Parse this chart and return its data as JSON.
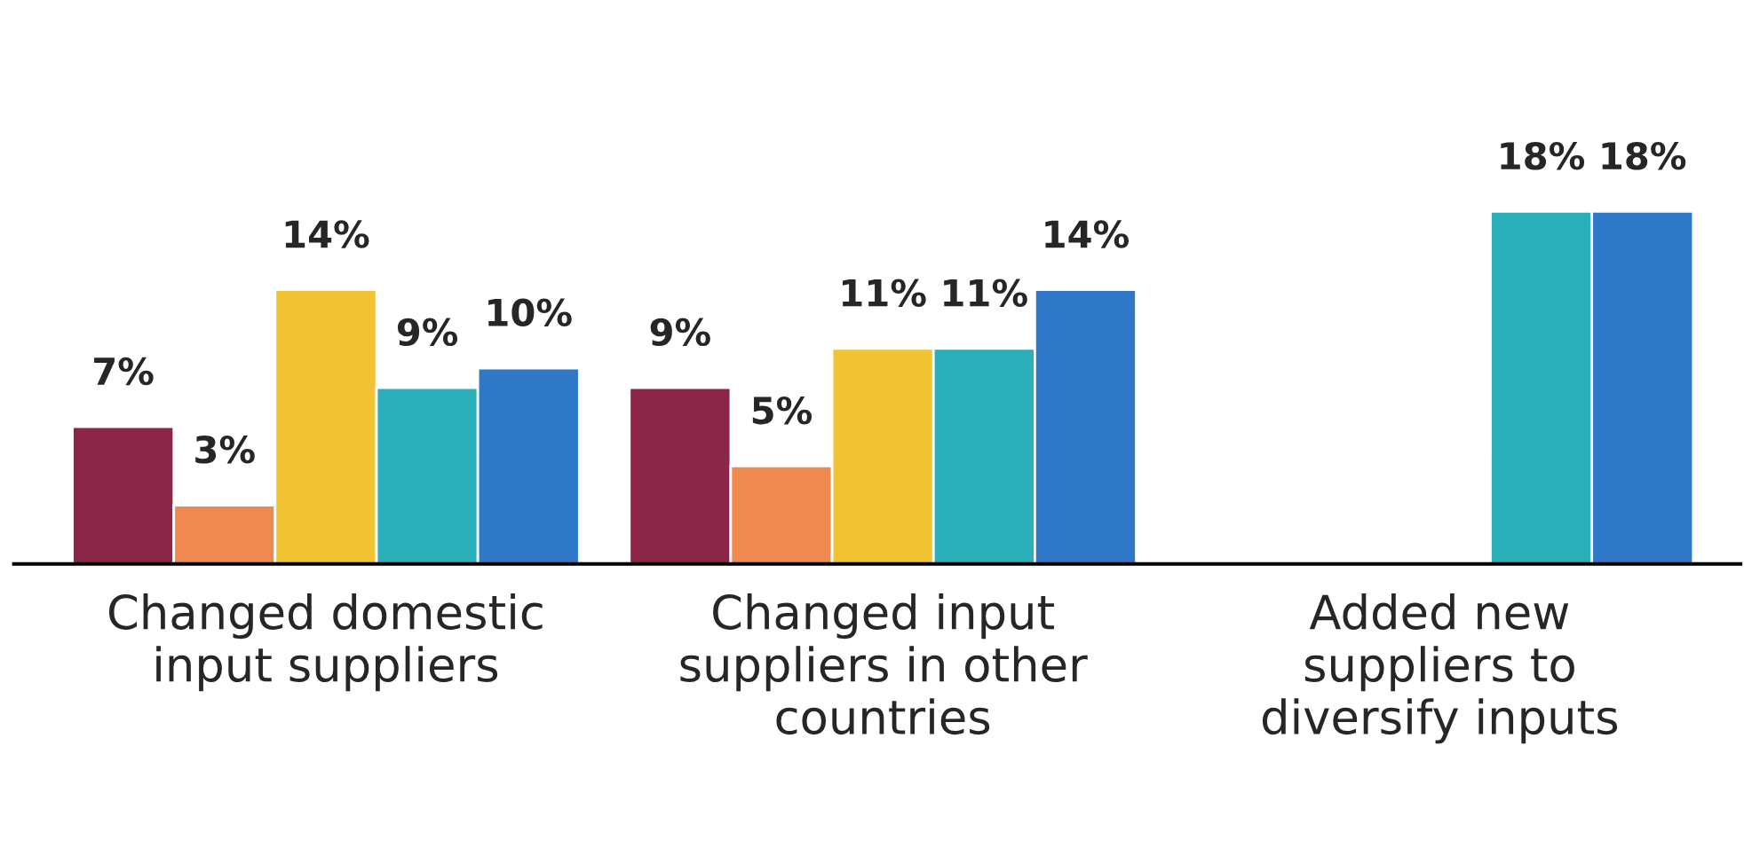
{
  "chart_data": {
    "type": "bar",
    "categories": [
      "Changed domestic\ninput suppliers",
      "Changed input\nsuppliers in other\ncountries",
      "Added new\nsuppliers to\ndiversify inputs"
    ],
    "series": [
      {
        "color": "#8b2649",
        "values": [
          7,
          9,
          null
        ],
        "value_labels": [
          "7%",
          "9%",
          null
        ]
      },
      {
        "color": "#ee8a4f",
        "values": [
          3,
          5,
          null
        ],
        "value_labels": [
          "3%",
          "5%",
          null
        ]
      },
      {
        "color": "#f1c232",
        "values": [
          14,
          11,
          null
        ],
        "value_labels": [
          "14%",
          "11%",
          null
        ]
      },
      {
        "color": "#2bafb8",
        "values": [
          9,
          11,
          18
        ],
        "value_labels": [
          "9%",
          "11%",
          "18%"
        ]
      },
      {
        "color": "#2e78c7",
        "values": [
          10,
          14,
          18
        ],
        "value_labels": [
          "10%",
          "14%",
          "18%"
        ]
      }
    ],
    "grid": false,
    "legend": false
  }
}
